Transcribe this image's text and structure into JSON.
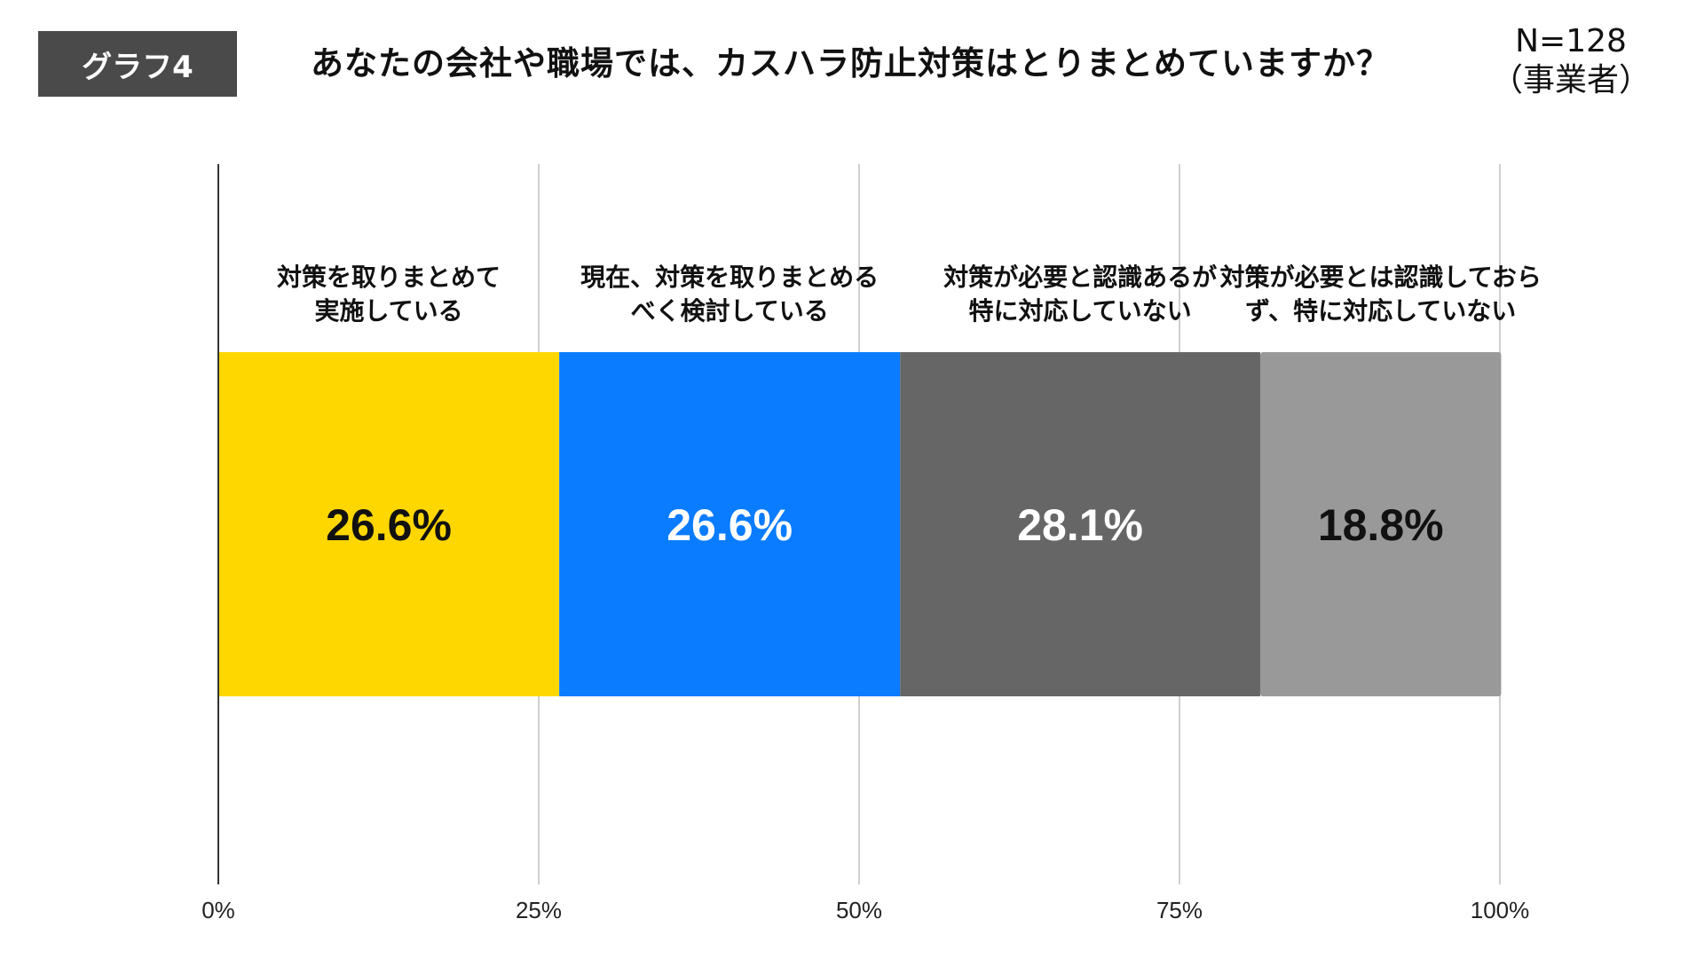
{
  "badge": "グラフ4",
  "title": "あなたの会社や職場では、カスハラ防止対策はとりまとめていますか？",
  "sample": {
    "n": "N=128",
    "group": "（事業者）"
  },
  "chart_data": {
    "type": "bar",
    "orientation": "horizontal",
    "stacked": true,
    "title": "あなたの会社や職場では、カスハラ防止対策はとりまとめていますか？",
    "xlim": [
      0,
      100
    ],
    "x_ticks": [
      "0%",
      "25%",
      "50%",
      "75%",
      "100%"
    ],
    "x_tick_values": [
      0,
      25,
      50,
      75,
      100
    ],
    "grid": true,
    "series": [
      {
        "name": "対策を取りまとめて実施している",
        "label_lines": [
          "対策を取りまとめて",
          "実施している"
        ],
        "value": 26.6,
        "value_label": "26.6%",
        "color": "#FFD700",
        "text_color": "#111111"
      },
      {
        "name": "現在、対策を取りまとめるべく検討している",
        "label_lines": [
          "現在、対策を取りまとめる",
          "べく検討している"
        ],
        "value": 26.6,
        "value_label": "26.6%",
        "color": "#0A7CFF",
        "text_color": "#FFFFFF"
      },
      {
        "name": "対策が必要と認識あるが特に対応していない",
        "label_lines": [
          "対策が必要と認識あるが",
          "特に対応していない"
        ],
        "value": 28.1,
        "value_label": "28.1%",
        "color": "#666666",
        "text_color": "#FFFFFF"
      },
      {
        "name": "対策が必要とは認識しておらず、特に対応していない",
        "label_lines": [
          "対策が必要とは認識しておら",
          "ず、特に対応していない"
        ],
        "value": 18.8,
        "value_label": "18.8%",
        "color": "#999999",
        "text_color": "#111111"
      }
    ]
  }
}
